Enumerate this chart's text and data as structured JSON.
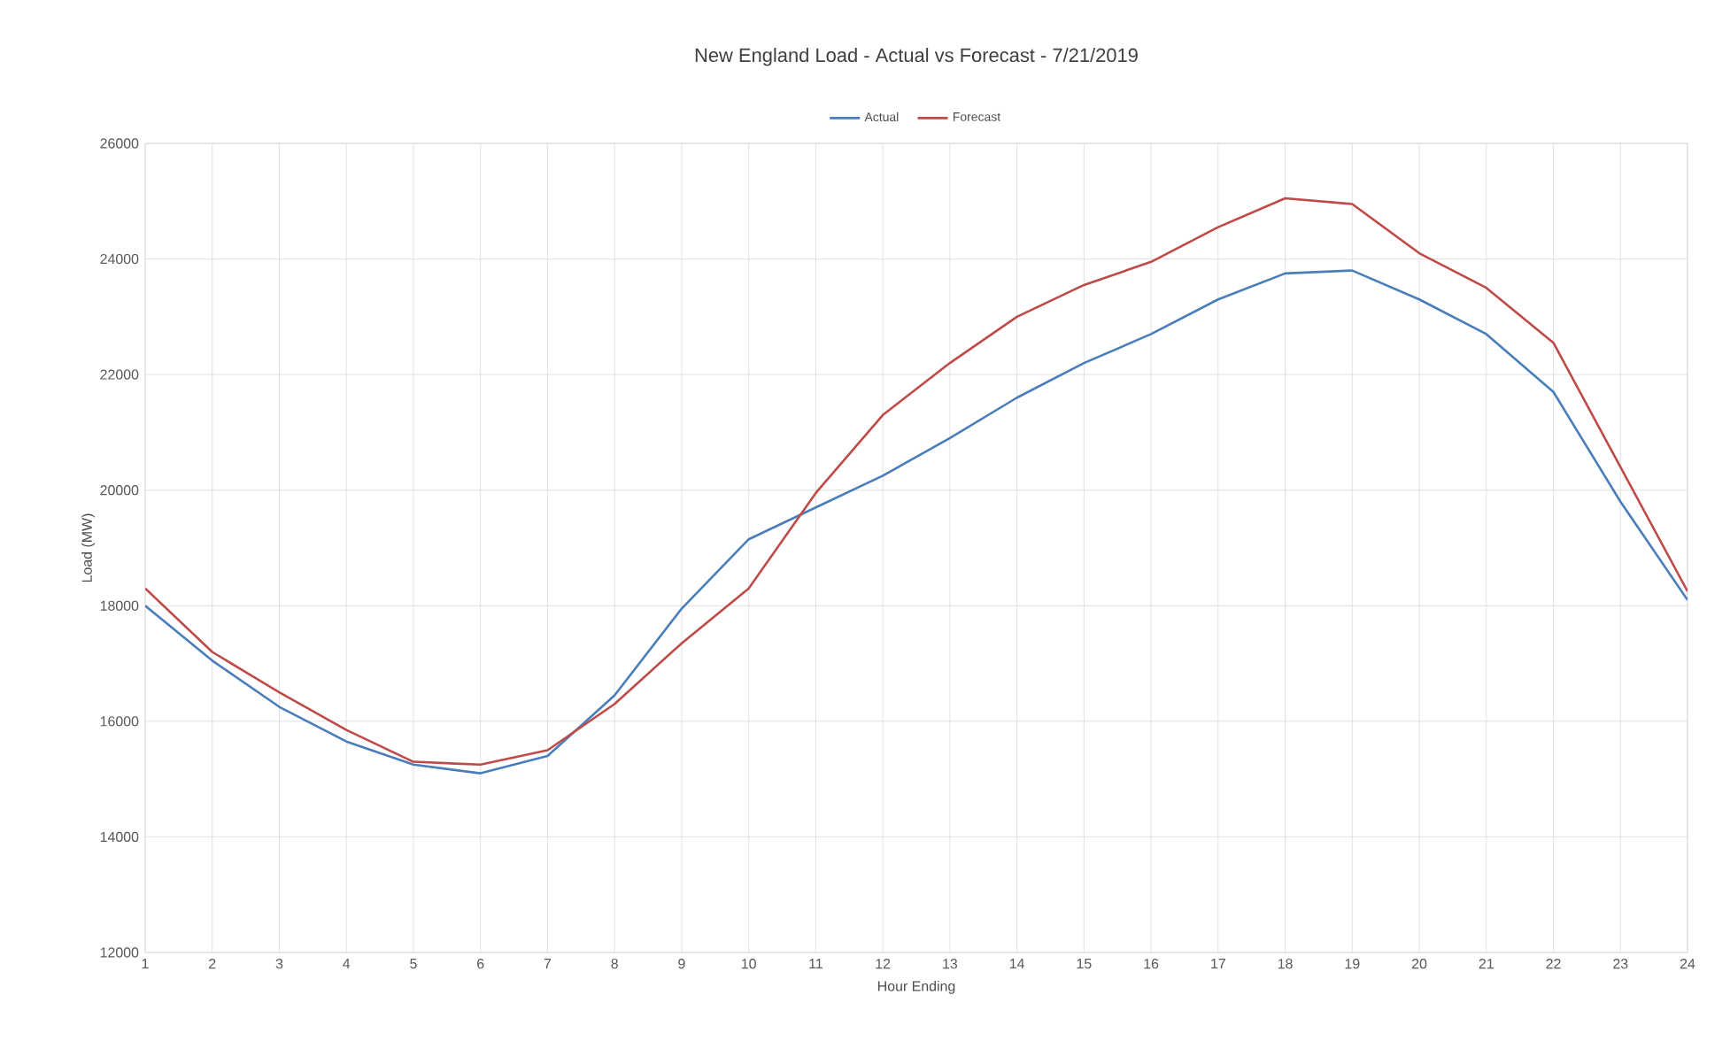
{
  "chart_data": {
    "type": "line",
    "title": "New England Load - Actual vs Forecast - 7/21/2019",
    "xlabel": "Hour Ending",
    "ylabel": "Load (MW)",
    "x": [
      1,
      2,
      3,
      4,
      5,
      6,
      7,
      8,
      9,
      10,
      11,
      12,
      13,
      14,
      15,
      16,
      17,
      18,
      19,
      20,
      21,
      22,
      23,
      24
    ],
    "series": [
      {
        "name": "Actual",
        "color": "#4a7ebb",
        "values": [
          18000,
          17050,
          16250,
          15650,
          15250,
          15100,
          15400,
          16450,
          17950,
          19150,
          19700,
          20250,
          20900,
          21600,
          22200,
          22700,
          23300,
          23750,
          23800,
          23300,
          22700,
          21700,
          19800,
          18100
        ]
      },
      {
        "name": "Forecast",
        "color": "#be4b48",
        "values": [
          18300,
          17200,
          16500,
          15850,
          15300,
          15250,
          15500,
          16300,
          17350,
          18300,
          19950,
          21300,
          22200,
          23000,
          23550,
          23950,
          24550,
          25050,
          24950,
          24100,
          23500,
          22550,
          20400,
          18250
        ]
      }
    ],
    "xlim": [
      1,
      24
    ],
    "xticks": [
      1,
      2,
      3,
      4,
      5,
      6,
      7,
      8,
      9,
      10,
      11,
      12,
      13,
      14,
      15,
      16,
      17,
      18,
      19,
      20,
      21,
      22,
      23,
      24
    ],
    "ylim": [
      12000,
      26000
    ],
    "yticks": [
      12000,
      14000,
      16000,
      18000,
      20000,
      22000,
      24000,
      26000
    ],
    "grid": true,
    "legend": "top",
    "marker": "none",
    "line_style": "solid"
  }
}
